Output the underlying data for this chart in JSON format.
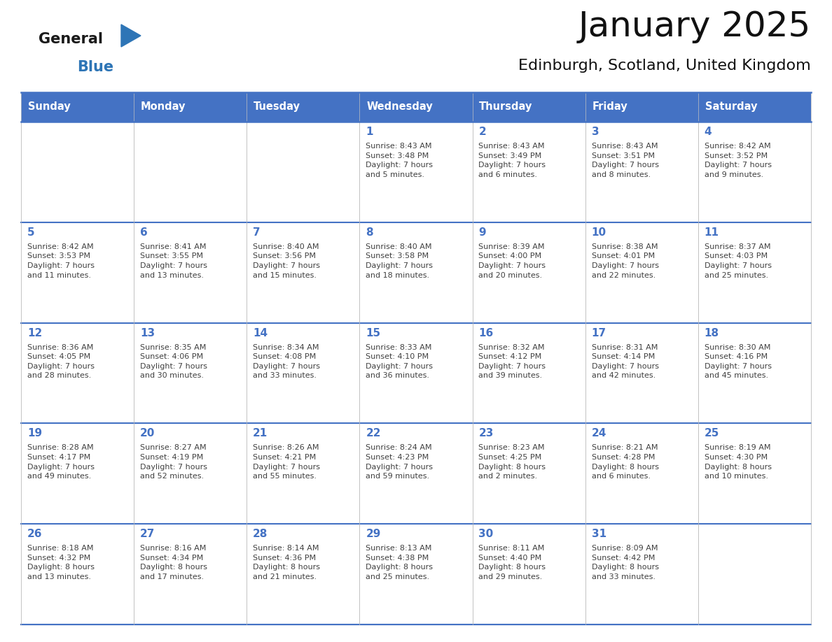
{
  "title": "January 2025",
  "subtitle": "Edinburgh, Scotland, United Kingdom",
  "header_color": "#4472C4",
  "header_text_color": "#FFFFFF",
  "cell_bg_color": "#FFFFFF",
  "border_color": "#4472C4",
  "text_color": "#404040",
  "day_number_color": "#4472C4",
  "days_of_week": [
    "Sunday",
    "Monday",
    "Tuesday",
    "Wednesday",
    "Thursday",
    "Friday",
    "Saturday"
  ],
  "logo_general_color": "#1a1a1a",
  "logo_blue_color": "#2E75B6",
  "calendar_data": [
    [
      {
        "day": "",
        "info": ""
      },
      {
        "day": "",
        "info": ""
      },
      {
        "day": "",
        "info": ""
      },
      {
        "day": "1",
        "info": "Sunrise: 8:43 AM\nSunset: 3:48 PM\nDaylight: 7 hours\nand 5 minutes."
      },
      {
        "day": "2",
        "info": "Sunrise: 8:43 AM\nSunset: 3:49 PM\nDaylight: 7 hours\nand 6 minutes."
      },
      {
        "day": "3",
        "info": "Sunrise: 8:43 AM\nSunset: 3:51 PM\nDaylight: 7 hours\nand 8 minutes."
      },
      {
        "day": "4",
        "info": "Sunrise: 8:42 AM\nSunset: 3:52 PM\nDaylight: 7 hours\nand 9 minutes."
      }
    ],
    [
      {
        "day": "5",
        "info": "Sunrise: 8:42 AM\nSunset: 3:53 PM\nDaylight: 7 hours\nand 11 minutes."
      },
      {
        "day": "6",
        "info": "Sunrise: 8:41 AM\nSunset: 3:55 PM\nDaylight: 7 hours\nand 13 minutes."
      },
      {
        "day": "7",
        "info": "Sunrise: 8:40 AM\nSunset: 3:56 PM\nDaylight: 7 hours\nand 15 minutes."
      },
      {
        "day": "8",
        "info": "Sunrise: 8:40 AM\nSunset: 3:58 PM\nDaylight: 7 hours\nand 18 minutes."
      },
      {
        "day": "9",
        "info": "Sunrise: 8:39 AM\nSunset: 4:00 PM\nDaylight: 7 hours\nand 20 minutes."
      },
      {
        "day": "10",
        "info": "Sunrise: 8:38 AM\nSunset: 4:01 PM\nDaylight: 7 hours\nand 22 minutes."
      },
      {
        "day": "11",
        "info": "Sunrise: 8:37 AM\nSunset: 4:03 PM\nDaylight: 7 hours\nand 25 minutes."
      }
    ],
    [
      {
        "day": "12",
        "info": "Sunrise: 8:36 AM\nSunset: 4:05 PM\nDaylight: 7 hours\nand 28 minutes."
      },
      {
        "day": "13",
        "info": "Sunrise: 8:35 AM\nSunset: 4:06 PM\nDaylight: 7 hours\nand 30 minutes."
      },
      {
        "day": "14",
        "info": "Sunrise: 8:34 AM\nSunset: 4:08 PM\nDaylight: 7 hours\nand 33 minutes."
      },
      {
        "day": "15",
        "info": "Sunrise: 8:33 AM\nSunset: 4:10 PM\nDaylight: 7 hours\nand 36 minutes."
      },
      {
        "day": "16",
        "info": "Sunrise: 8:32 AM\nSunset: 4:12 PM\nDaylight: 7 hours\nand 39 minutes."
      },
      {
        "day": "17",
        "info": "Sunrise: 8:31 AM\nSunset: 4:14 PM\nDaylight: 7 hours\nand 42 minutes."
      },
      {
        "day": "18",
        "info": "Sunrise: 8:30 AM\nSunset: 4:16 PM\nDaylight: 7 hours\nand 45 minutes."
      }
    ],
    [
      {
        "day": "19",
        "info": "Sunrise: 8:28 AM\nSunset: 4:17 PM\nDaylight: 7 hours\nand 49 minutes."
      },
      {
        "day": "20",
        "info": "Sunrise: 8:27 AM\nSunset: 4:19 PM\nDaylight: 7 hours\nand 52 minutes."
      },
      {
        "day": "21",
        "info": "Sunrise: 8:26 AM\nSunset: 4:21 PM\nDaylight: 7 hours\nand 55 minutes."
      },
      {
        "day": "22",
        "info": "Sunrise: 8:24 AM\nSunset: 4:23 PM\nDaylight: 7 hours\nand 59 minutes."
      },
      {
        "day": "23",
        "info": "Sunrise: 8:23 AM\nSunset: 4:25 PM\nDaylight: 8 hours\nand 2 minutes."
      },
      {
        "day": "24",
        "info": "Sunrise: 8:21 AM\nSunset: 4:28 PM\nDaylight: 8 hours\nand 6 minutes."
      },
      {
        "day": "25",
        "info": "Sunrise: 8:19 AM\nSunset: 4:30 PM\nDaylight: 8 hours\nand 10 minutes."
      }
    ],
    [
      {
        "day": "26",
        "info": "Sunrise: 8:18 AM\nSunset: 4:32 PM\nDaylight: 8 hours\nand 13 minutes."
      },
      {
        "day": "27",
        "info": "Sunrise: 8:16 AM\nSunset: 4:34 PM\nDaylight: 8 hours\nand 17 minutes."
      },
      {
        "day": "28",
        "info": "Sunrise: 8:14 AM\nSunset: 4:36 PM\nDaylight: 8 hours\nand 21 minutes."
      },
      {
        "day": "29",
        "info": "Sunrise: 8:13 AM\nSunset: 4:38 PM\nDaylight: 8 hours\nand 25 minutes."
      },
      {
        "day": "30",
        "info": "Sunrise: 8:11 AM\nSunset: 4:40 PM\nDaylight: 8 hours\nand 29 minutes."
      },
      {
        "day": "31",
        "info": "Sunrise: 8:09 AM\nSunset: 4:42 PM\nDaylight: 8 hours\nand 33 minutes."
      },
      {
        "day": "",
        "info": ""
      }
    ]
  ],
  "figsize": [
    11.88,
    9.18
  ],
  "dpi": 100
}
